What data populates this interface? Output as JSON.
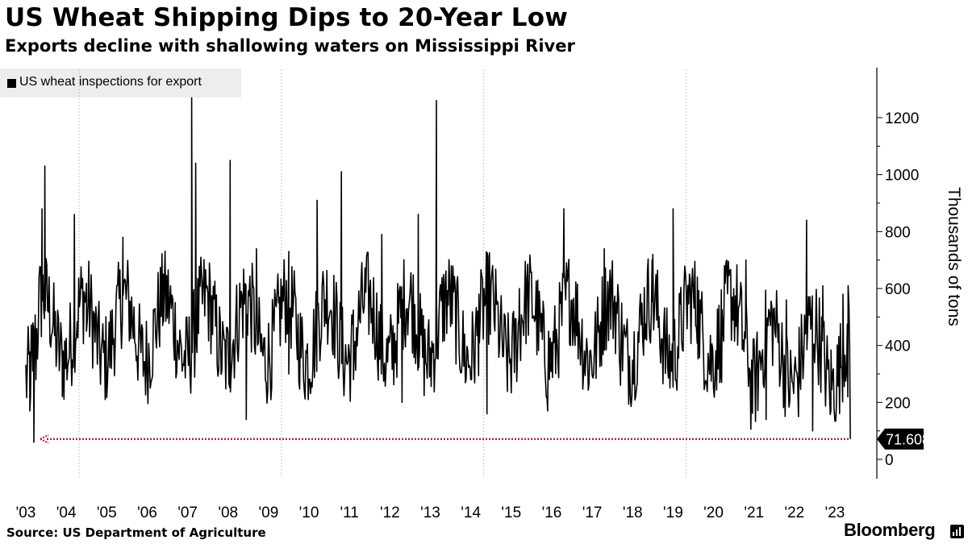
{
  "header": {
    "title": "US Wheat Shipping Dips to 20-Year Low",
    "subtitle": "Exports decline with shallowing waters on Mississippi River"
  },
  "legend": {
    "label": "US wheat inspections for export"
  },
  "footer": {
    "source": "Source: US Department of Agriculture",
    "brand": "Bloomberg",
    "brand_icon": "bloomberg-terminal-icon"
  },
  "colors": {
    "line": "#000000",
    "grid": "#c8c8c8",
    "reference": "#c0243a",
    "callout_bg": "#000000",
    "callout_text": "#ffffff",
    "legend_bg": "#ededed"
  },
  "chart_data": {
    "type": "line",
    "title": "US Wheat Shipping Dips to 20-Year Low",
    "subtitle": "Exports decline with shallowing waters on Mississippi River",
    "series": [
      {
        "name": "US wheat inspections for export",
        "x_start": 2003.0,
        "x_end": 2023.4,
        "peaks": [
          [
            2003.0,
            330
          ],
          [
            2003.1,
            170
          ],
          [
            2003.17,
            310
          ],
          [
            2003.2,
            60
          ],
          [
            2003.25,
            280
          ],
          [
            2003.4,
            880
          ],
          [
            2003.47,
            1030
          ],
          [
            2003.9,
            350
          ],
          [
            2004.2,
            860
          ],
          [
            2004.5,
            450
          ],
          [
            2005.4,
            780
          ],
          [
            2006.4,
            650
          ],
          [
            2007.1,
            1270
          ],
          [
            2007.2,
            1040
          ],
          [
            2007.4,
            650
          ],
          [
            2008.05,
            1050
          ],
          [
            2008.45,
            140
          ],
          [
            2008.7,
            740
          ],
          [
            2009.5,
            300
          ],
          [
            2010.2,
            910
          ],
          [
            2010.8,
            1010
          ],
          [
            2011.1,
            280
          ],
          [
            2011.8,
            790
          ],
          [
            2012.3,
            200
          ],
          [
            2012.7,
            860
          ],
          [
            2013.15,
            1260
          ],
          [
            2013.3,
            540
          ],
          [
            2014.2,
            580
          ],
          [
            2014.4,
            160
          ],
          [
            2015.2,
            600
          ],
          [
            2015.9,
            170
          ],
          [
            2016.3,
            880
          ],
          [
            2017.3,
            740
          ],
          [
            2017.7,
            260
          ],
          [
            2018.5,
            720
          ],
          [
            2019.0,
            880
          ],
          [
            2019.6,
            640
          ],
          [
            2020.2,
            270
          ],
          [
            2020.8,
            700
          ],
          [
            2021.3,
            140
          ],
          [
            2021.8,
            560
          ],
          [
            2022.1,
            150
          ],
          [
            2022.3,
            840
          ],
          [
            2022.45,
            100
          ],
          [
            2022.7,
            610
          ],
          [
            2022.9,
            170
          ],
          [
            2023.2,
            580
          ],
          [
            2023.32,
            220
          ],
          [
            2023.38,
            71.608
          ]
        ]
      }
    ],
    "ylabel": "Thousands of tons",
    "ylim": [
      -70,
      1370
    ],
    "yticks": [
      0,
      200,
      400,
      600,
      800,
      1000,
      1200
    ],
    "ytick_labels": [
      "0",
      "200",
      "400",
      "600",
      "800",
      "1000",
      "1200"
    ],
    "xlim": [
      2002.9,
      2023.5
    ],
    "xticks": [
      2003,
      2004,
      2005,
      2006,
      2007,
      2008,
      2009,
      2010,
      2011,
      2012,
      2013,
      2014,
      2015,
      2016,
      2017,
      2018,
      2019,
      2020,
      2021,
      2022,
      2023
    ],
    "xtick_labels": [
      "'03",
      "'04",
      "'05",
      "'06",
      "'07",
      "'08",
      "'09",
      "'10",
      "'11",
      "'12",
      "'13",
      "'14",
      "'15",
      "'16",
      "'17",
      "'18",
      "'19",
      "'20",
      "'21",
      "'22",
      "'23"
    ],
    "gridlines_x": [
      2004,
      2009,
      2014,
      2019
    ],
    "reference_line": {
      "value": 71.608,
      "style": "dotted",
      "arrow": "left"
    },
    "last_value_label": "71.608",
    "legend_position": "top-left"
  }
}
